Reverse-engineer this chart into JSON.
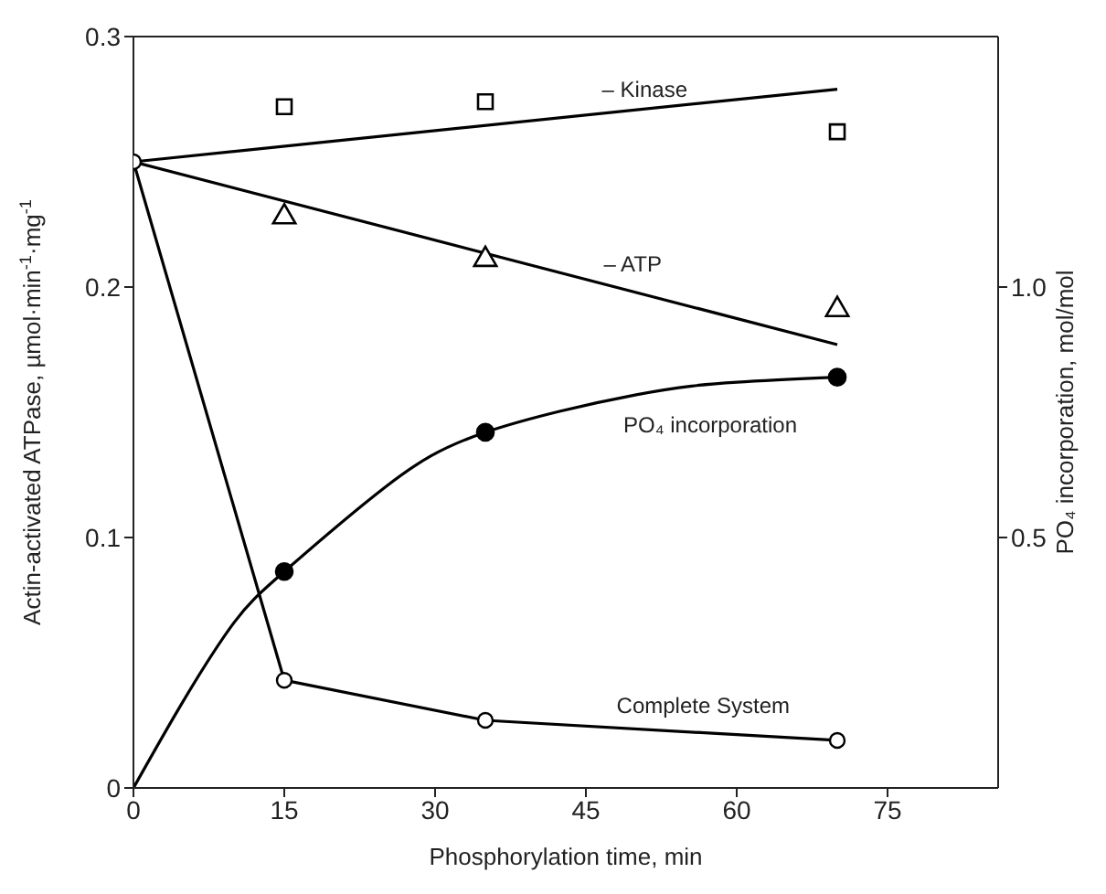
{
  "chart_data": {
    "type": "line",
    "xlabel": "Phosphorylation time, min",
    "ylabel": "Actin-activated ATPase, µmol·min$^{-1}$·mg$^{-1}$",
    "y2label": "PO₄ incorporation, mol/mol",
    "xlim": [
      0,
      86
    ],
    "xticks": [
      0,
      15,
      30,
      45,
      60,
      75
    ],
    "ylim": [
      0,
      0.3
    ],
    "yticks": [
      0,
      0.1,
      0.2,
      0.3
    ],
    "y2lim": [
      0,
      1.5
    ],
    "y2ticks": [
      0.5,
      {
        "value": 1,
        "label": "1.0"
      }
    ],
    "grid": false,
    "legend": false,
    "series": [
      {
        "name": "– Kinase",
        "color": "#000000",
        "x": [
          0,
          70
        ],
        "values": [
          0.25,
          0.279
        ]
      },
      {
        "type": "scatter",
        "color": "#000000",
        "marker": "square",
        "x": [
          15,
          35,
          70
        ],
        "values": [
          0.272,
          0.274,
          0.262
        ]
      },
      {
        "name": "– ATP",
        "color": "#000000",
        "x": [
          0,
          70
        ],
        "values": [
          0.25,
          0.177
        ]
      },
      {
        "type": "scatter",
        "color": "#000000",
        "marker": "triangle",
        "x": [
          15,
          35,
          70
        ],
        "values": [
          0.228,
          0.211,
          0.191
        ]
      },
      {
        "name": "PO₄ incorporation",
        "axis": "y2",
        "color": "#000000",
        "x": [
          0,
          5,
          10,
          15,
          25,
          35,
          50,
          60,
          70
        ],
        "values": [
          0,
          0.175,
          0.33,
          0.432,
          0.6,
          0.71,
          0.785,
          0.81,
          0.82
        ]
      },
      {
        "type": "scatter",
        "axis": "y2",
        "color": "#000000",
        "marker": "circle",
        "x": [
          15,
          35,
          70
        ],
        "values": [
          0.432,
          0.71,
          0.82
        ]
      },
      {
        "name": "Complete System",
        "color": "#000000",
        "marker": "circle",
        "x": [
          0,
          15,
          35,
          70
        ],
        "values": [
          0.25,
          0.043,
          0.027,
          0.019
        ]
      }
    ]
  }
}
